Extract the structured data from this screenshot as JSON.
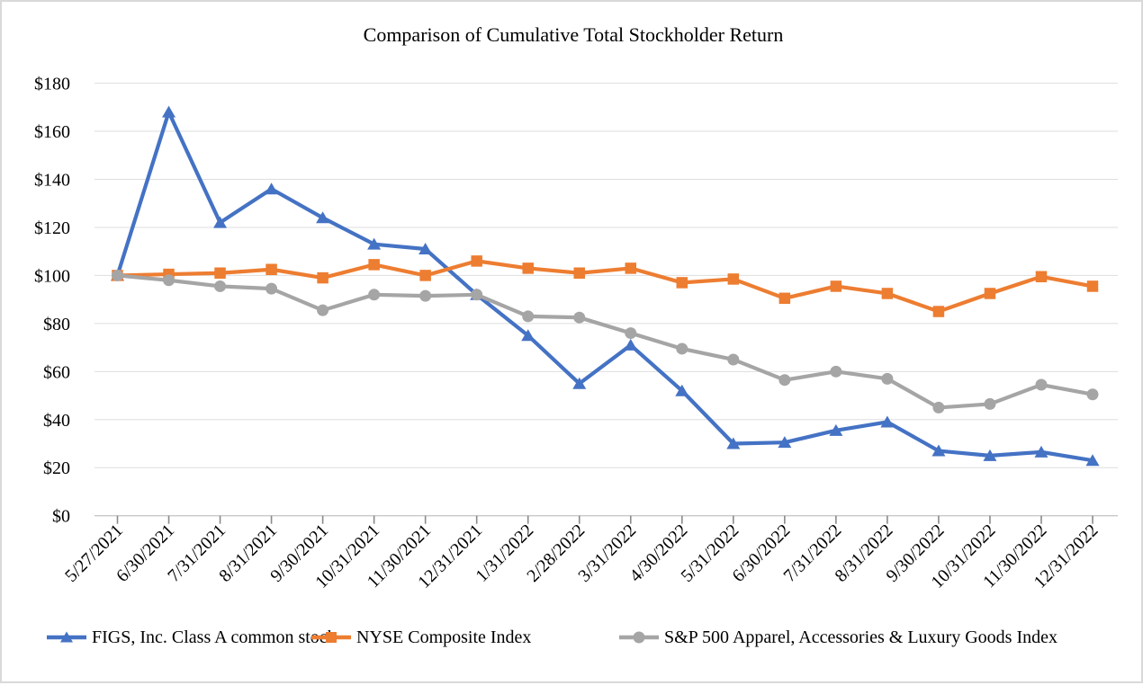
{
  "page": {
    "title": "Comparison of Cumulative Total Stockholder Return"
  },
  "chart_data": {
    "type": "line",
    "title": "Comparison of Cumulative Total Stockholder Return",
    "categories": [
      "5/27/2021",
      "6/30/2021",
      "7/31/2021",
      "8/31/2021",
      "9/30/2021",
      "10/31/2021",
      "11/30/2021",
      "12/31/2021",
      "1/31/2022",
      "2/28/2022",
      "3/31/2022",
      "4/30/2022",
      "5/31/2022",
      "6/30/2022",
      "7/31/2022",
      "8/31/2022",
      "9/30/2022",
      "10/31/2022",
      "11/30/2022",
      "12/31/2022"
    ],
    "series": [
      {
        "key": "figs",
        "name": "FIGS, Inc. Class A common stock",
        "color": "#4472C4",
        "marker": "triangle",
        "values": [
          100,
          168,
          122,
          136,
          124,
          113,
          111,
          92,
          75,
          55,
          71,
          52,
          30,
          30.5,
          35.5,
          39,
          27,
          25,
          26.5,
          23
        ]
      },
      {
        "key": "nyse",
        "name": "NYSE Composite Index",
        "color": "#ED7D31",
        "marker": "square",
        "values": [
          100,
          100.5,
          101,
          102.5,
          99,
          104.5,
          100,
          106,
          103,
          101,
          103,
          97,
          98.5,
          90.5,
          95.5,
          92.5,
          85,
          92.5,
          99.5,
          95.5
        ]
      },
      {
        "key": "sp500-apparel",
        "name": "S&P 500 Apparel, Accessories & Luxury Goods Index",
        "color": "#A5A5A5",
        "marker": "circle",
        "values": [
          100,
          98,
          95.5,
          94.5,
          85.5,
          92,
          91.5,
          92,
          83,
          82.5,
          76,
          69.5,
          65,
          56.5,
          60,
          57,
          45,
          46.5,
          54.5,
          50.5
        ]
      }
    ],
    "y_axis": {
      "min": 0,
      "max": 180,
      "step": 20,
      "tick_labels": [
        "$0",
        "$20",
        "$40",
        "$60",
        "$80",
        "$100",
        "$120",
        "$140",
        "$160",
        "$180"
      ]
    },
    "grid": "horizontal",
    "legend_position": "bottom"
  },
  "colors": {
    "gridline": "#DEDEDE",
    "axis_line": "#C8C8C8",
    "tick_mark": "#8A8A8A",
    "text": "#000000",
    "background": "#FFFFFF",
    "frame_border": "#D9D9D9"
  }
}
